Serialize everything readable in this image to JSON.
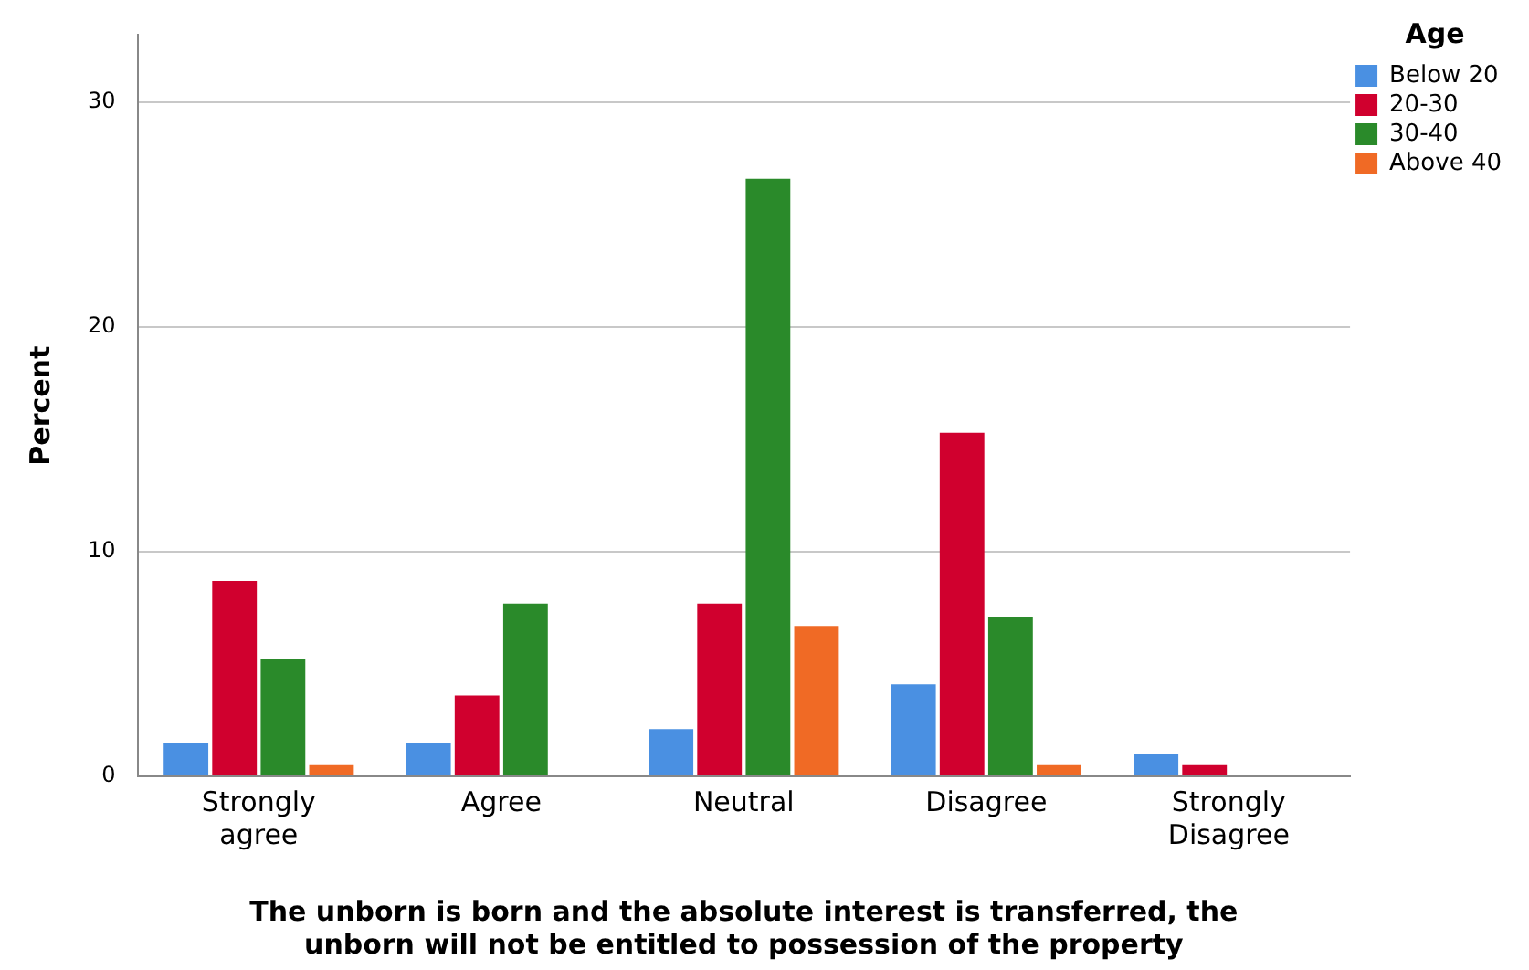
{
  "chart_data": {
    "type": "bar",
    "xlabel": "The unborn is born and the absolute interest is transferred, the\nunborn will not be entitled to possession of the property",
    "ylabel": "Percent",
    "legend_title": "Age",
    "categories": [
      "Strongly\nagree",
      "Agree",
      "Neutral",
      "Disagree",
      "Strongly\nDisagree"
    ],
    "series": [
      {
        "name": "Below 20",
        "color": "#4a90e2",
        "values": [
          1.5,
          1.5,
          2.1,
          4.1,
          1.0
        ]
      },
      {
        "name": "20-30",
        "color": "#d0002e",
        "values": [
          8.7,
          3.6,
          7.7,
          15.3,
          0.5
        ]
      },
      {
        "name": "30-40",
        "color": "#2a8a2a",
        "values": [
          5.2,
          7.7,
          26.6,
          7.1,
          0
        ]
      },
      {
        "name": "Above 40",
        "color": "#f06a25",
        "values": [
          0.5,
          0,
          6.7,
          0.5,
          0
        ]
      }
    ],
    "ylim": [
      0,
      33
    ],
    "yticks": [
      0,
      10,
      20,
      30
    ],
    "grid": "y",
    "legend": "top right"
  }
}
